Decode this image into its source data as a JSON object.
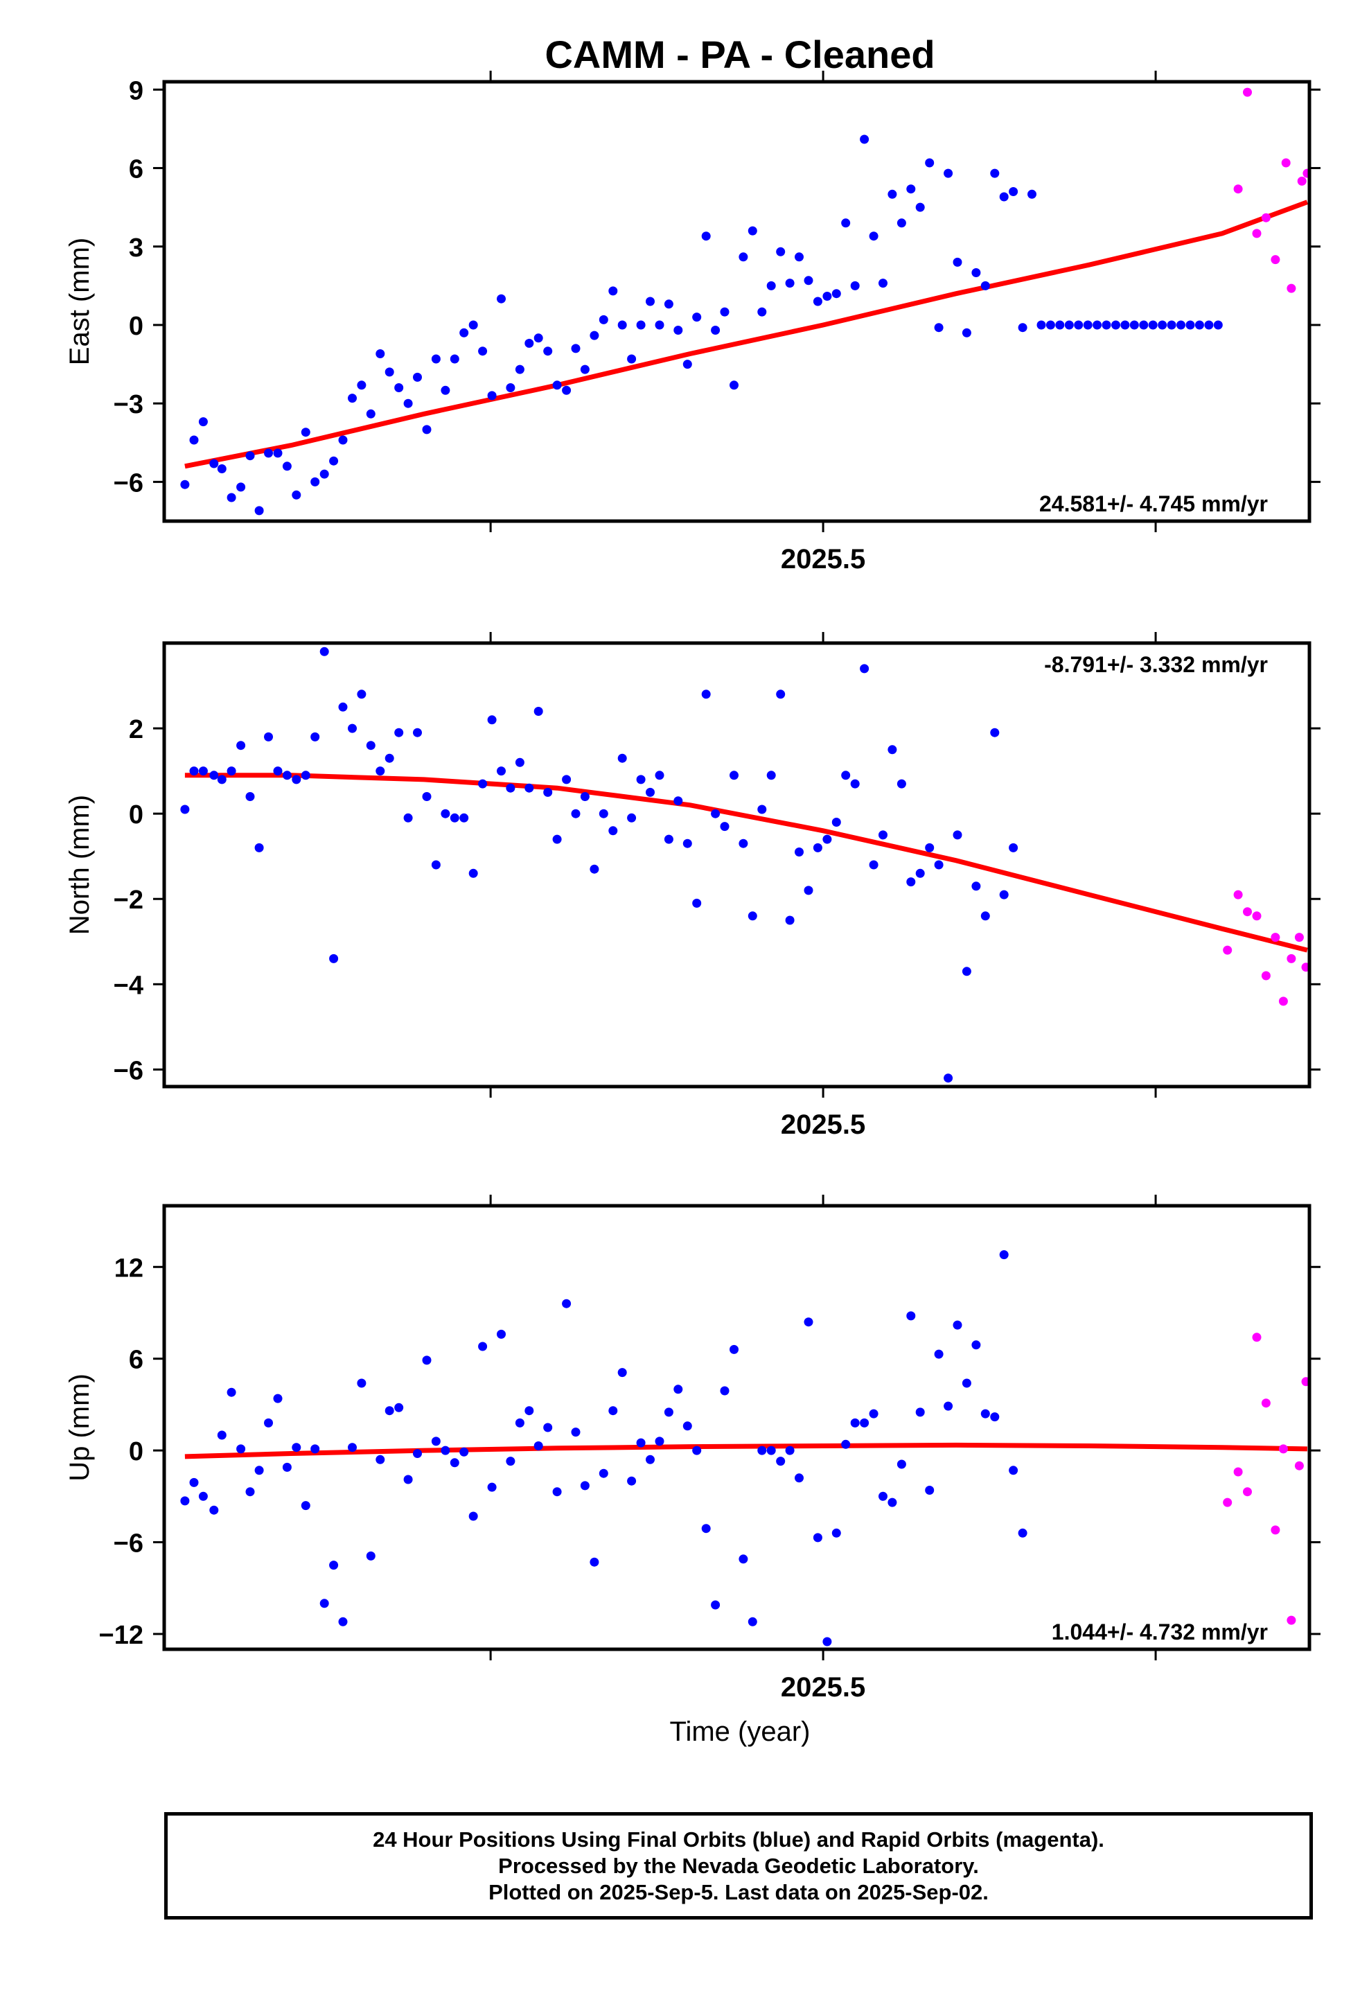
{
  "title": "CAMM  - PA - Cleaned",
  "xlabel": "Time (year)",
  "footer": {
    "line1": "24 Hour Positions Using Final Orbits (blue) and Rapid Orbits (magenta).",
    "line2": "Processed by the Nevada Geodetic Laboratory.",
    "line3": "Plotted on 2025-Sep-5. Last data on 2025-Sep-02."
  },
  "colors": {
    "final": "#0000ff",
    "rapid": "#ff00ff",
    "fit": "#ff0000",
    "axis": "#000000"
  },
  "chart_data": [
    {
      "type": "scatter",
      "component": "East",
      "ylabel": "East (mm)",
      "rate": "24.581+/- 4.745 mm/yr",
      "xlim": [
        2025.2523,
        2025.6828
      ],
      "ylim": [
        -7.5,
        9.3
      ],
      "yticks": [
        -6,
        -3,
        0,
        3,
        6,
        9
      ],
      "ytick_labels": [
        "−6",
        "−3",
        "0",
        "3",
        "6",
        "9"
      ],
      "xtick_label": "2025.5",
      "series": [
        {
          "name": "Final Orbits",
          "x": [
            2025.2601,
            2025.2635,
            2025.267,
            2025.271,
            2025.274,
            2025.2776,
            2025.2811,
            2025.2846,
            2025.288,
            2025.2915,
            2025.295,
            2025.2985,
            2025.302,
            2025.3055,
            2025.309,
            2025.3125,
            2025.316,
            2025.3195,
            2025.323,
            2025.3265,
            2025.33,
            2025.3335,
            2025.337,
            2025.3405,
            2025.344,
            2025.3475,
            2025.351,
            2025.3545,
            2025.358,
            2025.3615,
            2025.365,
            2025.3685,
            2025.372,
            2025.3755,
            2025.379,
            2025.3825,
            2025.386,
            2025.3895,
            2025.393,
            2025.3965,
            2025.4,
            2025.4035,
            2025.407,
            2025.4105,
            2025.414,
            2025.4175,
            2025.421,
            2025.4245,
            2025.428,
            2025.4315,
            2025.435,
            2025.4385,
            2025.442,
            2025.4455,
            2025.449,
            2025.4525,
            2025.456,
            2025.4595,
            2025.463,
            2025.4665,
            2025.47,
            2025.4735,
            2025.477,
            2025.4805,
            2025.484,
            2025.4875,
            2025.491,
            2025.4945,
            2025.498,
            2025.5015,
            2025.505,
            2025.5085,
            2025.512,
            2025.5155,
            2025.519,
            2025.5225,
            2025.526,
            2025.5295,
            2025.533,
            2025.5365,
            2025.54,
            2025.5435,
            2025.547,
            2025.5505,
            2025.554,
            2025.5575,
            2025.561,
            2025.5645,
            2025.568,
            2025.5715,
            2025.575,
            2025.5785,
            2025.582,
            2025.5855,
            2025.589,
            2025.5925,
            2025.596,
            2025.5995,
            2025.603,
            2025.6065,
            2025.61,
            2025.6135,
            2025.617,
            2025.6205,
            2025.624,
            2025.6275,
            2025.631,
            2025.6345,
            2025.638,
            2025.6415,
            2025.645,
            2025.6485
          ],
          "y": [
            -6.1,
            -4.4,
            -3.7,
            -5.3,
            -5.5,
            -6.6,
            -6.2,
            -5.0,
            -7.1,
            -4.9,
            -4.9,
            -5.4,
            -6.5,
            -4.1,
            -6.0,
            -5.7,
            -5.2,
            -4.4,
            -2.8,
            -2.3,
            -3.4,
            -1.1,
            -1.8,
            -2.4,
            -3.0,
            -2.0,
            -4.0,
            -1.3,
            -2.5,
            -1.3,
            -0.3,
            0.0,
            -1.0,
            -2.7,
            1.0,
            -2.4,
            -1.7,
            -0.7,
            -0.5,
            -1.0,
            -2.3,
            -2.5,
            -0.9,
            -1.7,
            -0.4,
            0.2,
            1.3,
            0.0,
            -1.3,
            0.0,
            0.9,
            0.0,
            0.8,
            -0.2,
            -1.5,
            0.3,
            3.4,
            -0.2,
            0.5,
            -2.3,
            2.6,
            3.6,
            0.5,
            1.5,
            2.8,
            1.6,
            2.6,
            1.7,
            0.9,
            1.1,
            1.2,
            3.9,
            1.5,
            7.1,
            3.4,
            1.6,
            5.0,
            3.9,
            5.2,
            4.5,
            6.2,
            -0.1,
            5.8,
            2.4,
            -0.3,
            2.0,
            1.5,
            5.8,
            4.9,
            5.1,
            -0.1,
            5.0,
            0.0,
            0.0,
            0.0,
            0.0,
            0.0,
            0.0,
            0.0,
            0.0,
            0.0,
            0.0,
            0.0,
            0.0,
            0.0,
            0.0,
            0.0,
            0.0,
            0.0,
            0.0,
            0.0,
            0.0
          ]
        },
        {
          "name": "Rapid Orbits",
          "x": [
            2025.656,
            2025.6595,
            2025.663,
            2025.6665,
            2025.67,
            2025.674,
            2025.676,
            2025.68,
            2025.682
          ],
          "y": [
            5.2,
            8.9,
            3.5,
            4.1,
            2.5,
            6.2,
            1.4,
            5.5,
            5.8
          ]
        },
        {
          "name": "Fit",
          "x": [
            2025.2601,
            2025.3,
            2025.35,
            2025.4,
            2025.45,
            2025.5,
            2025.55,
            2025.6,
            2025.65,
            2025.682
          ],
          "y": [
            -5.4,
            -4.6,
            -3.4,
            -2.3,
            -1.1,
            0.0,
            1.2,
            2.3,
            3.5,
            4.7
          ]
        }
      ]
    },
    {
      "type": "scatter",
      "component": "North",
      "ylabel": "North (mm)",
      "rate": "-8.791+/- 3.332 mm/yr",
      "xlim": [
        2025.2523,
        2025.6828
      ],
      "ylim": [
        -6.4,
        4.0
      ],
      "yticks": [
        -6,
        -4,
        -2,
        0,
        2
      ],
      "ytick_labels": [
        "−6",
        "−4",
        "−2",
        "0",
        "2"
      ],
      "xtick_label": "2025.5",
      "series": [
        {
          "name": "Final Orbits",
          "x": [
            2025.2601,
            2025.2635,
            2025.267,
            2025.271,
            2025.274,
            2025.2776,
            2025.2811,
            2025.2846,
            2025.288,
            2025.2915,
            2025.295,
            2025.2985,
            2025.302,
            2025.3055,
            2025.309,
            2025.3125,
            2025.316,
            2025.3195,
            2025.323,
            2025.3265,
            2025.33,
            2025.3335,
            2025.337,
            2025.3405,
            2025.344,
            2025.3475,
            2025.351,
            2025.3545,
            2025.358,
            2025.3615,
            2025.365,
            2025.3685,
            2025.372,
            2025.3755,
            2025.379,
            2025.3825,
            2025.386,
            2025.3895,
            2025.393,
            2025.3965,
            2025.4,
            2025.4035,
            2025.407,
            2025.4105,
            2025.414,
            2025.4175,
            2025.421,
            2025.4245,
            2025.428,
            2025.4315,
            2025.435,
            2025.4385,
            2025.442,
            2025.4455,
            2025.449,
            2025.4525,
            2025.456,
            2025.4595,
            2025.463,
            2025.4665,
            2025.47,
            2025.4735,
            2025.477,
            2025.4805,
            2025.484,
            2025.4875,
            2025.491,
            2025.4945,
            2025.498,
            2025.5015,
            2025.505,
            2025.5085,
            2025.512,
            2025.5155,
            2025.519,
            2025.5225,
            2025.526,
            2025.5295,
            2025.533,
            2025.5365,
            2025.54,
            2025.5435,
            2025.547,
            2025.5505,
            2025.554,
            2025.5575,
            2025.561,
            2025.5645,
            2025.568,
            2025.5715
          ],
          "y": [
            0.1,
            1.0,
            1.0,
            0.9,
            0.8,
            1.0,
            1.6,
            0.4,
            -0.8,
            1.8,
            1.0,
            0.9,
            0.8,
            0.9,
            1.8,
            3.8,
            -3.4,
            2.5,
            2.0,
            2.8,
            1.6,
            1.0,
            1.3,
            1.9,
            -0.1,
            1.9,
            0.4,
            -1.2,
            0.0,
            -0.1,
            -0.1,
            -1.4,
            0.7,
            2.2,
            1.0,
            0.6,
            1.2,
            0.6,
            2.4,
            0.5,
            -0.6,
            0.8,
            0.0,
            0.4,
            -1.3,
            0.0,
            -0.4,
            1.3,
            -0.1,
            0.8,
            0.5,
            0.9,
            -0.6,
            0.3,
            -0.7,
            -2.1,
            2.8,
            0.0,
            -0.3,
            0.9,
            -0.7,
            -2.4,
            0.1,
            0.9,
            2.8,
            -2.5,
            -0.9,
            -1.8,
            -0.8,
            -0.6,
            -0.2,
            0.9,
            0.7,
            3.4,
            -1.2,
            -0.5,
            1.5,
            0.7,
            -1.6,
            -1.4,
            -0.8,
            -1.2,
            -6.2,
            -0.5,
            -3.7,
            -1.7,
            -2.4,
            1.9,
            -1.9,
            -0.8
          ]
        },
        {
          "name": "Rapid Orbits",
          "x": [
            2025.652,
            2025.656,
            2025.6595,
            2025.663,
            2025.6665,
            2025.67,
            2025.673,
            2025.676,
            2025.679,
            2025.6815
          ],
          "y": [
            -3.2,
            -1.9,
            -2.3,
            -2.4,
            -3.8,
            -2.9,
            -4.4,
            -3.4,
            -2.9,
            -3.6
          ]
        },
        {
          "name": "Fit",
          "x": [
            2025.2601,
            2025.3,
            2025.35,
            2025.4,
            2025.45,
            2025.5,
            2025.55,
            2025.6,
            2025.65,
            2025.682
          ],
          "y": [
            0.9,
            0.9,
            0.8,
            0.6,
            0.2,
            -0.4,
            -1.1,
            -1.9,
            -2.7,
            -3.2
          ]
        }
      ]
    },
    {
      "type": "scatter",
      "component": "Up",
      "ylabel": "Up (mm)",
      "rate": "1.044+/- 4.732 mm/yr",
      "xlim": [
        2025.2523,
        2025.6828
      ],
      "ylim": [
        -13.0,
        16.0
      ],
      "yticks": [
        -12,
        -6,
        0,
        6,
        12
      ],
      "ytick_labels": [
        "−12",
        "−6",
        "0",
        "6",
        "12"
      ],
      "xtick_label": "2025.5",
      "series": [
        {
          "name": "Final Orbits",
          "x": [
            2025.2601,
            2025.2635,
            2025.267,
            2025.271,
            2025.274,
            2025.2776,
            2025.2811,
            2025.2846,
            2025.288,
            2025.2915,
            2025.295,
            2025.2985,
            2025.302,
            2025.3055,
            2025.309,
            2025.3125,
            2025.316,
            2025.3195,
            2025.323,
            2025.3265,
            2025.33,
            2025.3335,
            2025.337,
            2025.3405,
            2025.344,
            2025.3475,
            2025.351,
            2025.3545,
            2025.358,
            2025.3615,
            2025.365,
            2025.3685,
            2025.372,
            2025.3755,
            2025.379,
            2025.3825,
            2025.386,
            2025.3895,
            2025.393,
            2025.3965,
            2025.4,
            2025.4035,
            2025.407,
            2025.4105,
            2025.414,
            2025.4175,
            2025.421,
            2025.4245,
            2025.428,
            2025.4315,
            2025.435,
            2025.4385,
            2025.442,
            2025.4455,
            2025.449,
            2025.4525,
            2025.456,
            2025.4595,
            2025.463,
            2025.4665,
            2025.47,
            2025.4735,
            2025.477,
            2025.4805,
            2025.484,
            2025.4875,
            2025.491,
            2025.4945,
            2025.498,
            2025.5015,
            2025.505,
            2025.5085,
            2025.512,
            2025.5155,
            2025.519,
            2025.5225,
            2025.526,
            2025.5295,
            2025.533,
            2025.5365,
            2025.54,
            2025.5435,
            2025.547,
            2025.5505,
            2025.554,
            2025.5575,
            2025.561,
            2025.5645,
            2025.568,
            2025.5715,
            2025.575
          ],
          "y": [
            -3.3,
            -2.1,
            -3.0,
            -3.9,
            1.0,
            3.8,
            0.1,
            -2.7,
            -1.3,
            1.8,
            3.4,
            -1.1,
            0.2,
            -3.6,
            0.1,
            -10.0,
            -7.5,
            -11.2,
            0.2,
            4.4,
            -6.9,
            -0.6,
            2.6,
            2.8,
            -1.9,
            -0.2,
            5.9,
            0.6,
            0.0,
            -0.8,
            -0.1,
            -4.3,
            6.8,
            -2.4,
            7.6,
            -0.7,
            1.8,
            2.6,
            0.3,
            1.5,
            -2.7,
            9.6,
            1.2,
            -2.3,
            -7.3,
            -1.5,
            2.6,
            5.1,
            -2.0,
            0.5,
            -0.6,
            0.6,
            2.5,
            4.0,
            1.6,
            0.0,
            -5.1,
            -10.1,
            3.9,
            6.6,
            -7.1,
            -11.2,
            0.0,
            0.0,
            -0.7,
            0.0,
            -1.8,
            8.4,
            -5.7,
            -12.5,
            -5.4,
            0.4,
            1.8,
            1.8,
            2.4,
            -3.0,
            -3.4,
            -0.9,
            8.8,
            2.5,
            -2.6,
            6.3,
            2.9,
            8.2,
            4.4,
            6.9,
            2.4,
            2.2,
            12.8,
            -1.3,
            -5.4
          ]
        },
        {
          "name": "Rapid Orbits",
          "x": [
            2025.652,
            2025.656,
            2025.6595,
            2025.663,
            2025.6665,
            2025.67,
            2025.673,
            2025.676,
            2025.679,
            2025.6815
          ],
          "y": [
            -3.4,
            -1.4,
            -2.7,
            7.4,
            3.1,
            -5.2,
            0.1,
            -11.1,
            -1.0,
            4.5
          ]
        },
        {
          "name": "Fit",
          "x": [
            2025.2601,
            2025.3,
            2025.35,
            2025.4,
            2025.45,
            2025.5,
            2025.55,
            2025.6,
            2025.65,
            2025.682
          ],
          "y": [
            -0.4,
            -0.2,
            0.0,
            0.15,
            0.25,
            0.3,
            0.35,
            0.3,
            0.2,
            0.1
          ]
        }
      ]
    }
  ]
}
